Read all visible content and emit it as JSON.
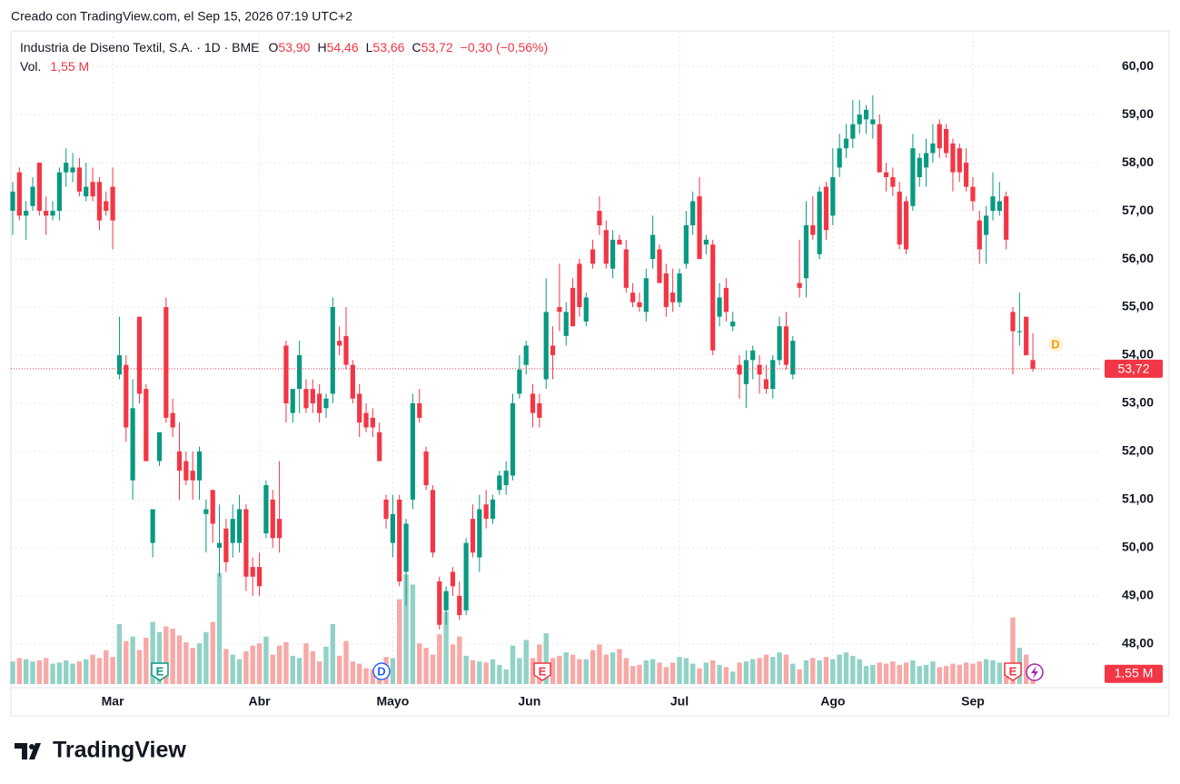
{
  "credit": "Creado con TradingView.com, el Sep 15, 2026 07:19 UTC+2",
  "brand": "TradingView",
  "chart_data": {
    "type": "candlestick",
    "title": "Industria de Diseno Textil, S.A. · 1D · BME",
    "ohlc_legend": [
      {
        "key": "O",
        "value": "53,90"
      },
      {
        "key": "H",
        "value": "54,46"
      },
      {
        "key": "L",
        "value": "53,66"
      },
      {
        "key": "C",
        "value": "53,72"
      }
    ],
    "change": "−0,30 (−0,56%)",
    "volume_legend": {
      "key": "Vol.",
      "value": "1,55 M"
    },
    "last_price_label": "53,72",
    "event_labels": [
      "E",
      "D",
      "E",
      "E"
    ],
    "dividend_label": "D",
    "up_color": "#089981",
    "down_color": "#f23645",
    "up_volume_color": "#92d2c6",
    "down_volume_color": "#f7a9a7",
    "ylim": [
      47.13,
      60.72
    ],
    "yticks": [
      {
        "value": 48,
        "label": "48,00"
      },
      {
        "value": 49,
        "label": "49,00"
      },
      {
        "value": 50,
        "label": "50,00"
      },
      {
        "value": 51,
        "label": "51,00"
      },
      {
        "value": 52,
        "label": "52,00"
      },
      {
        "value": 53,
        "label": "53,00"
      },
      {
        "value": 54,
        "label": "54,00"
      },
      {
        "value": 55,
        "label": "55,00"
      },
      {
        "value": 56,
        "label": "56,00"
      },
      {
        "value": 57,
        "label": "57,00"
      },
      {
        "value": 58,
        "label": "58,00"
      },
      {
        "value": 59,
        "label": "59,00"
      },
      {
        "value": 60,
        "label": "60,00"
      }
    ],
    "xticks": [
      {
        "value": 15,
        "label": "Mar"
      },
      {
        "value": 37,
        "label": "Abr"
      },
      {
        "value": 57,
        "label": "Mayo"
      },
      {
        "value": 77.5,
        "label": "Jun"
      },
      {
        "value": 100,
        "label": "Jul"
      },
      {
        "value": 123,
        "label": "Ago"
      },
      {
        "value": 144,
        "label": "Sep"
      }
    ],
    "grid": true,
    "ohlc": [
      [
        57.0,
        57.6,
        56.5,
        57.4
      ],
      [
        57.8,
        57.9,
        56.8,
        56.9
      ],
      [
        56.9,
        57.2,
        56.4,
        57.0
      ],
      [
        57.1,
        57.7,
        57.0,
        57.5
      ],
      [
        58.0,
        58.0,
        56.9,
        57.0
      ],
      [
        57.0,
        57.3,
        56.5,
        56.9
      ],
      [
        56.9,
        57.2,
        56.8,
        57.0
      ],
      [
        57.0,
        57.9,
        56.8,
        57.8
      ],
      [
        57.8,
        58.3,
        57.5,
        58.0
      ],
      [
        57.8,
        58.2,
        57.6,
        57.9
      ],
      [
        57.9,
        58.1,
        57.3,
        57.4
      ],
      [
        57.3,
        58.0,
        57.2,
        57.5
      ],
      [
        57.6,
        57.9,
        57.2,
        57.3
      ],
      [
        57.6,
        57.7,
        56.6,
        56.8
      ],
      [
        57.2,
        57.4,
        56.9,
        57.0
      ],
      [
        57.5,
        57.9,
        56.2,
        56.8
      ],
      [
        53.6,
        54.8,
        53.5,
        54.0
      ],
      [
        53.8,
        54.0,
        52.2,
        52.5
      ],
      [
        51.4,
        53.5,
        51.0,
        52.9
      ],
      [
        54.8,
        54.8,
        53.0,
        53.2
      ],
      [
        53.3,
        53.4,
        51.8,
        51.8
      ],
      [
        50.1,
        50.8,
        49.8,
        50.8
      ],
      [
        51.8,
        52.4,
        51.7,
        52.4
      ],
      [
        55.0,
        55.2,
        52.6,
        52.7
      ],
      [
        52.8,
        53.1,
        52.3,
        52.5
      ],
      [
        52.0,
        52.6,
        51.0,
        51.6
      ],
      [
        51.8,
        52.0,
        51.3,
        51.4
      ],
      [
        51.6,
        52.0,
        51.0,
        51.4
      ],
      [
        51.4,
        52.1,
        51.0,
        52.0
      ],
      [
        50.7,
        51.0,
        49.9,
        50.8
      ],
      [
        51.2,
        51.2,
        50.1,
        50.5
      ],
      [
        50.0,
        50.9,
        49.4,
        50.1
      ],
      [
        50.4,
        50.6,
        49.5,
        49.7
      ],
      [
        50.1,
        50.9,
        49.8,
        50.6
      ],
      [
        50.1,
        51.1,
        49.9,
        50.8
      ],
      [
        50.8,
        50.9,
        49.1,
        49.4
      ],
      [
        49.6,
        49.8,
        49.0,
        49.4
      ],
      [
        49.6,
        49.9,
        49.0,
        49.2
      ],
      [
        50.3,
        51.4,
        50.2,
        51.3
      ],
      [
        51.0,
        51.2,
        50.0,
        50.2
      ],
      [
        50.6,
        51.8,
        49.9,
        50.2
      ],
      [
        54.2,
        54.3,
        52.6,
        53.0
      ],
      [
        52.8,
        53.3,
        52.6,
        53.3
      ],
      [
        53.3,
        54.3,
        52.8,
        54.0
      ],
      [
        53.3,
        53.5,
        52.8,
        52.9
      ],
      [
        53.3,
        53.5,
        52.8,
        53.0
      ],
      [
        53.2,
        53.4,
        52.6,
        52.8
      ],
      [
        52.9,
        53.2,
        52.7,
        53.1
      ],
      [
        53.2,
        55.2,
        53.0,
        55.0
      ],
      [
        54.3,
        54.6,
        54.0,
        54.2
      ],
      [
        54.4,
        55.0,
        53.7,
        53.8
      ],
      [
        53.8,
        53.9,
        53.0,
        53.1
      ],
      [
        53.2,
        53.4,
        52.3,
        52.6
      ],
      [
        52.8,
        53.0,
        52.4,
        52.5
      ],
      [
        52.7,
        52.9,
        52.3,
        52.5
      ],
      [
        52.4,
        52.6,
        51.8,
        51.8
      ],
      [
        51.0,
        51.1,
        50.4,
        50.6
      ],
      [
        50.1,
        51.1,
        49.8,
        50.7
      ],
      [
        51.0,
        51.1,
        49.2,
        49.3
      ],
      [
        49.5,
        50.6,
        48.8,
        50.5
      ],
      [
        51.0,
        53.2,
        50.8,
        53.0
      ],
      [
        53.0,
        53.3,
        52.6,
        52.7
      ],
      [
        52.0,
        52.1,
        51.2,
        51.3
      ],
      [
        51.2,
        51.3,
        49.8,
        49.9
      ],
      [
        49.3,
        49.4,
        48.3,
        48.4
      ],
      [
        48.7,
        49.2,
        48.4,
        49.1
      ],
      [
        49.5,
        49.6,
        49.0,
        49.2
      ],
      [
        49.0,
        49.3,
        48.5,
        48.6
      ],
      [
        48.7,
        50.2,
        48.6,
        50.1
      ],
      [
        50.6,
        50.9,
        49.8,
        49.9
      ],
      [
        49.8,
        51.1,
        49.5,
        50.8
      ],
      [
        50.9,
        51.2,
        50.4,
        50.6
      ],
      [
        50.6,
        51.1,
        50.5,
        51.0
      ],
      [
        51.2,
        51.6,
        51.1,
        51.5
      ],
      [
        51.3,
        51.8,
        51.1,
        51.6
      ],
      [
        51.5,
        53.2,
        51.4,
        53.0
      ],
      [
        53.2,
        54.0,
        53.1,
        53.7
      ],
      [
        53.8,
        54.3,
        53.6,
        54.2
      ],
      [
        53.2,
        53.4,
        52.5,
        52.8
      ],
      [
        53.0,
        53.2,
        52.5,
        52.7
      ],
      [
        53.5,
        55.6,
        53.3,
        54.9
      ],
      [
        54.2,
        54.6,
        53.5,
        54.0
      ],
      [
        55.0,
        55.9,
        54.5,
        54.9
      ],
      [
        54.4,
        55.1,
        54.2,
        54.9
      ],
      [
        55.4,
        55.6,
        54.6,
        54.6
      ],
      [
        55.9,
        56.0,
        54.8,
        55.0
      ],
      [
        54.7,
        55.3,
        54.6,
        55.2
      ],
      [
        56.2,
        56.4,
        55.8,
        55.9
      ],
      [
        57.0,
        57.3,
        56.5,
        56.7
      ],
      [
        56.6,
        56.8,
        55.8,
        55.9
      ],
      [
        55.8,
        56.6,
        55.6,
        56.4
      ],
      [
        56.4,
        56.5,
        56.3,
        56.3
      ],
      [
        56.2,
        56.4,
        55.3,
        55.4
      ],
      [
        55.3,
        55.5,
        55.0,
        55.1
      ],
      [
        55.1,
        55.3,
        54.9,
        55.0
      ],
      [
        54.9,
        55.8,
        54.7,
        55.6
      ],
      [
        56.0,
        56.9,
        55.8,
        56.5
      ],
      [
        56.2,
        56.3,
        55.5,
        55.5
      ],
      [
        55.7,
        55.9,
        54.8,
        55.0
      ],
      [
        55.3,
        55.8,
        54.9,
        55.1
      ],
      [
        55.1,
        55.8,
        55.0,
        55.7
      ],
      [
        55.9,
        57.0,
        55.8,
        56.7
      ],
      [
        56.7,
        57.4,
        56.5,
        57.2
      ],
      [
        57.3,
        57.7,
        56.0,
        56.0
      ],
      [
        56.3,
        56.5,
        56.1,
        56.4
      ],
      [
        56.3,
        56.4,
        54.0,
        54.1
      ],
      [
        54.8,
        55.5,
        54.6,
        55.2
      ],
      [
        55.4,
        55.6,
        54.7,
        54.9
      ],
      [
        54.6,
        54.9,
        54.5,
        54.7
      ],
      [
        53.8,
        54.0,
        53.1,
        53.6
      ],
      [
        53.4,
        54.1,
        52.9,
        53.9
      ],
      [
        53.9,
        54.2,
        53.5,
        54.1
      ],
      [
        53.8,
        54.0,
        53.2,
        53.6
      ],
      [
        53.5,
        53.8,
        53.2,
        53.3
      ],
      [
        53.3,
        54.0,
        53.1,
        53.9
      ],
      [
        53.9,
        54.8,
        53.8,
        54.6
      ],
      [
        54.6,
        54.9,
        53.7,
        53.8
      ],
      [
        53.6,
        54.4,
        53.5,
        54.3
      ],
      [
        55.5,
        56.4,
        55.2,
        55.4
      ],
      [
        55.6,
        57.2,
        55.2,
        56.7
      ],
      [
        56.7,
        57.3,
        56.4,
        56.5
      ],
      [
        56.1,
        57.5,
        56.0,
        57.4
      ],
      [
        57.5,
        57.6,
        56.4,
        56.6
      ],
      [
        56.9,
        58.3,
        56.7,
        57.7
      ],
      [
        57.9,
        58.6,
        57.7,
        58.3
      ],
      [
        58.3,
        58.8,
        58.1,
        58.5
      ],
      [
        58.5,
        59.3,
        58.3,
        58.8
      ],
      [
        58.8,
        59.3,
        58.6,
        59.0
      ],
      [
        58.9,
        59.2,
        58.6,
        59.1
      ],
      [
        58.8,
        59.4,
        58.5,
        58.9
      ],
      [
        58.8,
        59.0,
        57.8,
        57.8
      ],
      [
        57.8,
        58.0,
        57.4,
        57.7
      ],
      [
        57.7,
        57.9,
        57.3,
        57.5
      ],
      [
        57.4,
        57.6,
        56.2,
        56.3
      ],
      [
        57.2,
        57.3,
        56.1,
        56.2
      ],
      [
        57.1,
        58.6,
        57.0,
        58.3
      ],
      [
        57.7,
        58.2,
        57.5,
        58.1
      ],
      [
        57.9,
        58.5,
        57.5,
        58.2
      ],
      [
        58.2,
        58.8,
        58.0,
        58.4
      ],
      [
        58.8,
        58.9,
        58.1,
        58.3
      ],
      [
        58.7,
        58.8,
        58.1,
        58.2
      ],
      [
        58.4,
        58.5,
        57.4,
        57.8
      ],
      [
        58.3,
        58.4,
        57.6,
        57.8
      ],
      [
        58.0,
        58.3,
        57.4,
        57.5
      ],
      [
        57.5,
        57.7,
        57.0,
        57.2
      ],
      [
        56.8,
        57.0,
        55.9,
        56.2
      ],
      [
        56.5,
        57.1,
        55.9,
        56.9
      ],
      [
        57.0,
        57.8,
        56.8,
        57.3
      ],
      [
        57.0,
        57.6,
        56.9,
        57.2
      ],
      [
        57.3,
        57.4,
        56.2,
        56.4
      ],
      [
        54.9,
        55.0,
        53.6,
        54.5
      ],
      [
        54.5,
        55.3,
        54.2,
        54.5
      ],
      [
        54.8,
        54.8,
        54.0,
        54.0
      ],
      [
        53.9,
        54.46,
        53.66,
        53.72
      ]
    ],
    "volume": [
      2.0,
      2.3,
      2.2,
      2.0,
      2.1,
      2.3,
      1.8,
      1.9,
      2.1,
      1.8,
      2.0,
      2.2,
      2.6,
      2.3,
      3.0,
      2.4,
      5.3,
      3.8,
      4.2,
      3.0,
      4.1,
      5.5,
      4.6,
      5.1,
      4.9,
      4.3,
      3.7,
      3.2,
      3.6,
      4.6,
      5.5,
      9.8,
      3.1,
      2.6,
      2.2,
      2.9,
      3.4,
      3.6,
      4.2,
      2.6,
      3.4,
      3.7,
      2.5,
      2.3,
      3.6,
      2.9,
      2.0,
      3.3,
      5.3,
      2.5,
      3.8,
      2.0,
      1.8,
      1.4,
      1.3,
      1.6,
      2.4,
      2.3,
      7.5,
      9.7,
      8.8,
      3.6,
      3.2,
      2.6,
      4.4,
      6.4,
      3.5,
      4.2,
      2.5,
      2.1,
      2.0,
      1.9,
      2.2,
      1.7,
      1.3,
      3.4,
      2.3,
      3.9,
      2.3,
      3.5,
      4.5,
      2.3,
      2.5,
      2.8,
      2.6,
      2.2,
      2.2,
      3.0,
      3.5,
      2.6,
      2.8,
      3.1,
      2.3,
      1.6,
      1.7,
      2.1,
      2.2,
      1.9,
      1.5,
      1.9,
      2.4,
      2.3,
      1.8,
      1.4,
      1.9,
      2.1,
      1.7,
      1.5,
      1.1,
      1.9,
      2.0,
      2.2,
      2.3,
      2.6,
      2.4,
      2.8,
      2.6,
      1.8,
      1.3,
      2.1,
      2.3,
      2.1,
      2.4,
      2.2,
      2.6,
      2.8,
      2.5,
      2.2,
      1.6,
      1.7,
      1.9,
      1.8,
      2.0,
      1.7,
      1.9,
      2.1,
      1.6,
      1.7,
      2.0,
      1.5,
      1.6,
      1.8,
      1.7,
      1.9,
      1.8,
      2.0,
      2.2,
      2.1,
      1.9,
      1.6,
      5.9,
      3.2,
      2.6,
      1.55
    ]
  }
}
